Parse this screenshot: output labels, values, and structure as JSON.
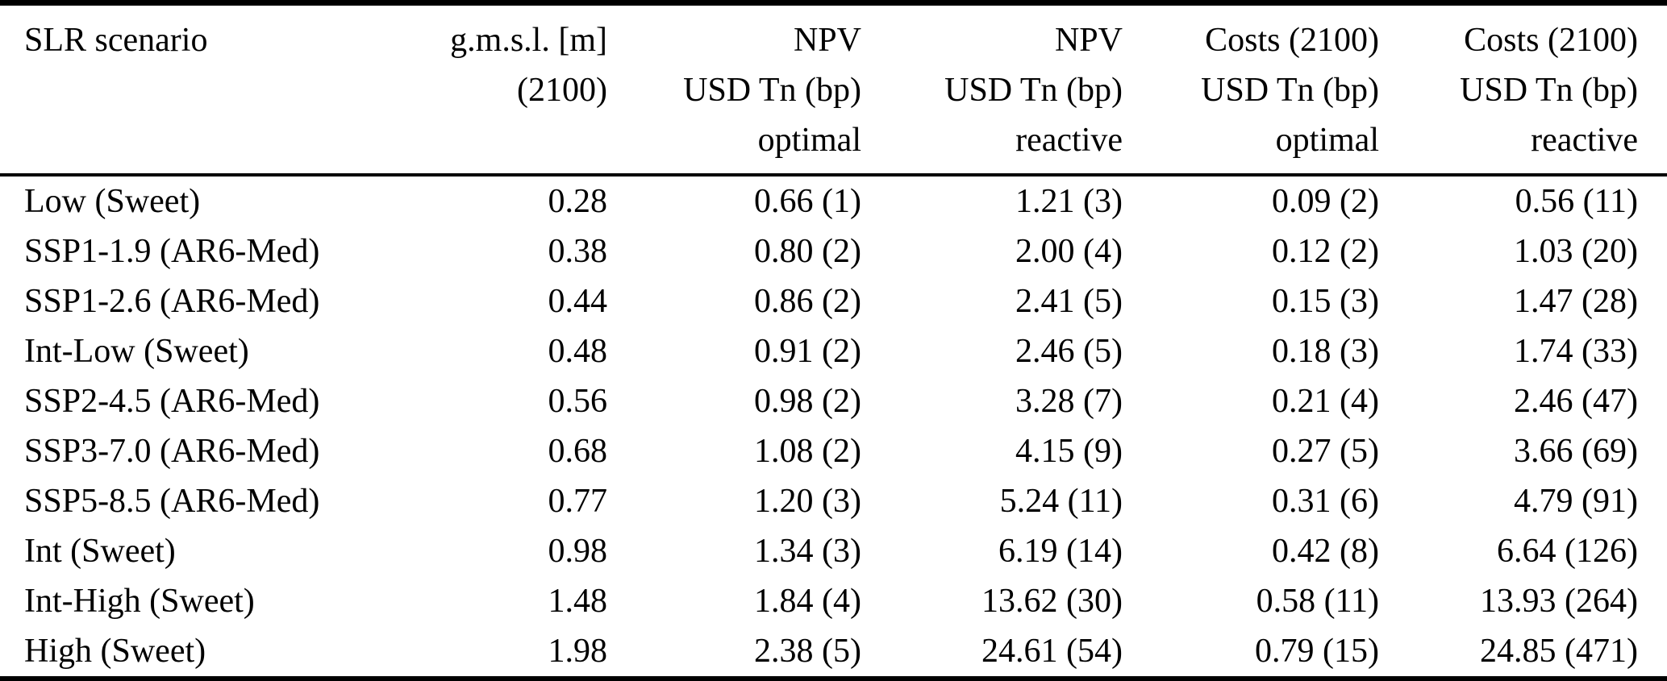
{
  "colors": {
    "background": "#ffffff",
    "text": "#000000",
    "rule": "#000000"
  },
  "table": {
    "columns": [
      {
        "id": "slr-scenario",
        "align": "left",
        "lines": [
          "SLR scenario"
        ]
      },
      {
        "id": "gmsl-2100",
        "align": "right",
        "lines": [
          "g.m.s.l. [m]",
          "(2100)"
        ]
      },
      {
        "id": "npv-optimal",
        "align": "right",
        "lines": [
          "NPV",
          "USD Tn (bp)",
          "optimal"
        ]
      },
      {
        "id": "npv-reactive",
        "align": "right",
        "lines": [
          "NPV",
          "USD Tn (bp)",
          "reactive"
        ]
      },
      {
        "id": "costs-optimal",
        "align": "right",
        "lines": [
          "Costs (2100)",
          "USD Tn (bp)",
          "optimal"
        ]
      },
      {
        "id": "costs-reactive",
        "align": "right",
        "lines": [
          "Costs (2100)",
          "USD Tn (bp)",
          "reactive"
        ]
      }
    ],
    "rows": [
      [
        "Low (Sweet)",
        "0.28",
        "0.66 (1)",
        "1.21 (3)",
        "0.09 (2)",
        "0.56 (11)"
      ],
      [
        "SSP1-1.9 (AR6-Med)",
        "0.38",
        "0.80 (2)",
        "2.00 (4)",
        "0.12 (2)",
        "1.03 (20)"
      ],
      [
        "SSP1-2.6 (AR6-Med)",
        "0.44",
        "0.86 (2)",
        "2.41 (5)",
        "0.15 (3)",
        "1.47 (28)"
      ],
      [
        "Int-Low (Sweet)",
        "0.48",
        "0.91 (2)",
        "2.46 (5)",
        "0.18 (3)",
        "1.74 (33)"
      ],
      [
        "SSP2-4.5 (AR6-Med)",
        "0.56",
        "0.98 (2)",
        "3.28 (7)",
        "0.21 (4)",
        "2.46 (47)"
      ],
      [
        "SSP3-7.0 (AR6-Med)",
        "0.68",
        "1.08 (2)",
        "4.15 (9)",
        "0.27 (5)",
        "3.66 (69)"
      ],
      [
        "SSP5-8.5 (AR6-Med)",
        "0.77",
        "1.20 (3)",
        "5.24 (11)",
        "0.31 (6)",
        "4.79 (91)"
      ],
      [
        "Int (Sweet)",
        "0.98",
        "1.34 (3)",
        "6.19 (14)",
        "0.42 (8)",
        "6.64 (126)"
      ],
      [
        "Int-High (Sweet)",
        "1.48",
        "1.84 (4)",
        "13.62 (30)",
        "0.58 (11)",
        "13.93 (264)"
      ],
      [
        "High (Sweet)",
        "1.98",
        "2.38 (5)",
        "24.61 (54)",
        "0.79 (15)",
        "24.85 (471)"
      ]
    ]
  }
}
